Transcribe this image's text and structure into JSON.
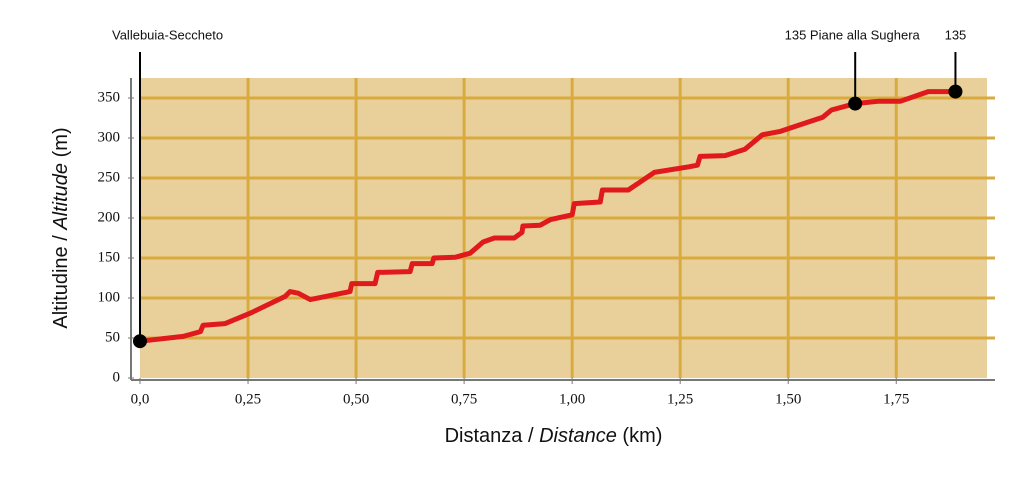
{
  "chart_data": {
    "type": "line",
    "xlabel": {
      "plain": "Distanza / ",
      "italic": "Distance",
      "unit": " (km)"
    },
    "ylabel": {
      "plain": "Altitudine / ",
      "italic": "Altitude",
      "unit": " (m)"
    },
    "xlim": [
      0,
      1.96
    ],
    "ylim": [
      0,
      375
    ],
    "xticks": [
      {
        "value": 0,
        "label": "0,0"
      },
      {
        "value": 0.25,
        "label": "0,25"
      },
      {
        "value": 0.5,
        "label": "0,50"
      },
      {
        "value": 0.75,
        "label": "0,75"
      },
      {
        "value": 1,
        "label": "1,00"
      },
      {
        "value": 1.25,
        "label": "1,25"
      },
      {
        "value": 1.5,
        "label": "1,50"
      },
      {
        "value": 1.75,
        "label": "1,75"
      }
    ],
    "yticks": [
      0,
      50,
      100,
      150,
      200,
      250,
      300,
      350
    ],
    "grid": true,
    "background": "#e9d09a",
    "grid_color": "#d9ab3f",
    "series": [
      {
        "color": "#e0191c",
        "x": [
          0,
          0.1,
          0.14,
          0.146,
          0.197,
          0.255,
          0.336,
          0.347,
          0.366,
          0.394,
          0.486,
          0.49,
          0.544,
          0.55,
          0.625,
          0.63,
          0.676,
          0.68,
          0.73,
          0.764,
          0.794,
          0.82,
          0.866,
          0.884,
          0.886,
          0.926,
          0.95,
          1.0,
          1.005,
          1.065,
          1.07,
          1.13,
          1.19,
          1.27,
          1.29,
          1.296,
          1.354,
          1.4,
          1.44,
          1.48,
          1.53,
          1.58,
          1.6,
          1.655,
          1.71,
          1.76,
          1.824,
          1.887
        ],
        "values": [
          46,
          52,
          58,
          66,
          68,
          81,
          102,
          108,
          106,
          98,
          108,
          118,
          118,
          132,
          133,
          143,
          143,
          150,
          151,
          156,
          170,
          175,
          175,
          182,
          190,
          191,
          198,
          204,
          218,
          220,
          235,
          235,
          257,
          264,
          266,
          277,
          278,
          286,
          304,
          308,
          317,
          326,
          335,
          343,
          346,
          346,
          358,
          358
        ]
      }
    ],
    "markers": [
      {
        "label": "Vallebuia-Seccheto",
        "x": 0,
        "y": 46
      },
      {
        "label": "135 Piane alla Sughera",
        "x": 1.655,
        "y": 343
      },
      {
        "label": "135",
        "x": 1.887,
        "y": 358
      }
    ]
  }
}
